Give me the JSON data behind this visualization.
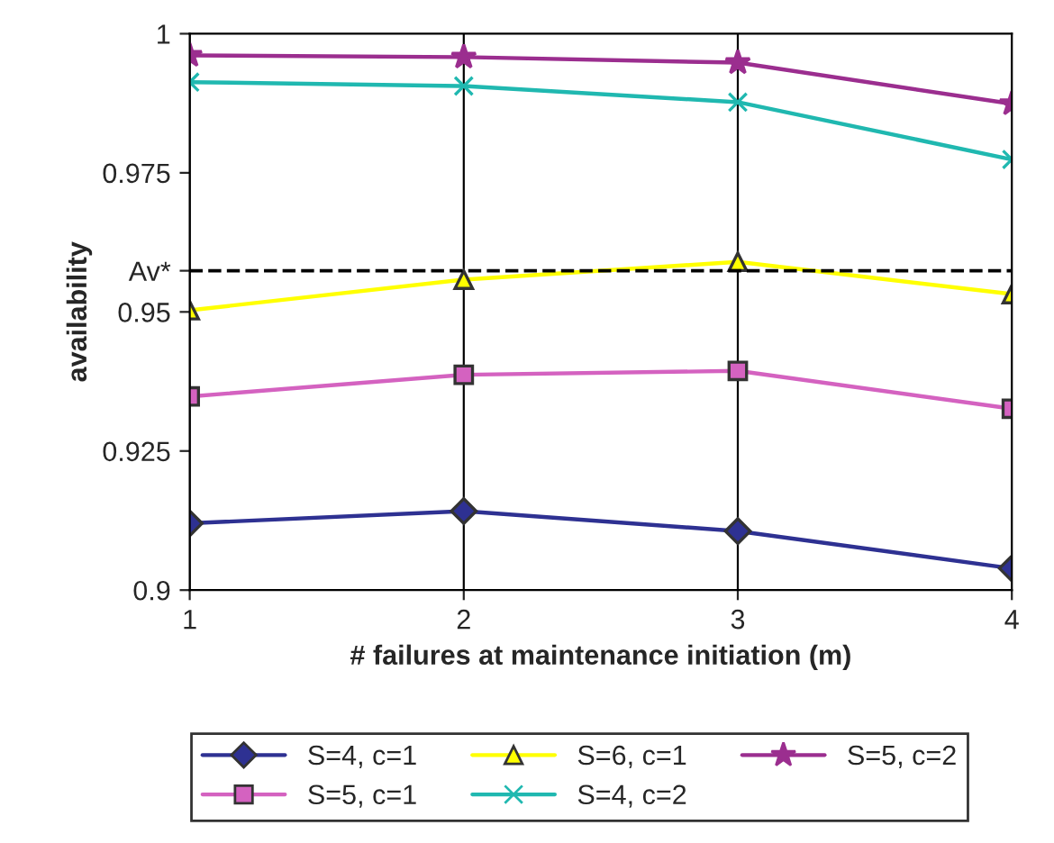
{
  "chart_data": {
    "type": "line",
    "xlabel": "# failures at maintenance initiation (m)",
    "ylabel": "availability",
    "x": [
      1,
      2,
      3,
      4
    ],
    "series": [
      {
        "name": "S=4, c=1",
        "color": "#2e3192",
        "marker": "diamond",
        "values": [
          0.912,
          0.9142,
          0.9106,
          0.9039
        ]
      },
      {
        "name": "S=5, c=1",
        "color": "#d462c0",
        "marker": "square",
        "values": [
          0.9348,
          0.9387,
          0.9394,
          0.9326
        ]
      },
      {
        "name": "S=6, c=1",
        "color": "#ffff00",
        "marker": "triangle",
        "values": [
          0.9503,
          0.9558,
          0.959,
          0.9532
        ]
      },
      {
        "name": "S=4, c=2",
        "color": "#20b8b0",
        "marker": "cross",
        "values": [
          0.9913,
          0.9906,
          0.9877,
          0.9774
        ]
      },
      {
        "name": "S=5, c=2",
        "color": "#9b2e8f",
        "marker": "star",
        "values": [
          0.9961,
          0.9958,
          0.9948,
          0.9874
        ]
      }
    ],
    "xlim": [
      1,
      4
    ],
    "xticks": [
      1,
      2,
      3,
      4
    ],
    "ylim": [
      0.9,
      1
    ],
    "yticks": [
      0.9,
      0.925,
      0.95,
      {
        "value": 0.9574,
        "label": "Av*"
      },
      0.975,
      1
    ],
    "ref_lines": [
      {
        "axis": "y",
        "value": 0.9574,
        "color": "#000000",
        "line_style": "dashed"
      }
    ],
    "grid": "x",
    "legend": "bottom",
    "line_style": "solid"
  }
}
